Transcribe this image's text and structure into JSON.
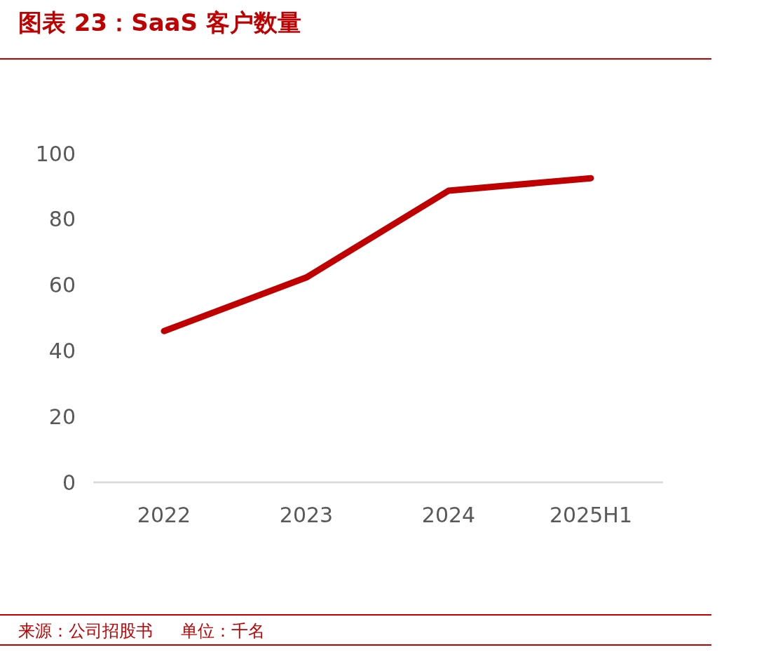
{
  "chart_data": {
    "type": "line",
    "title": "图表 23：SaaS 客户数量",
    "categories": [
      "2022",
      "2023",
      "2024",
      "2025H1"
    ],
    "series": [
      {
        "color": "#c00000",
        "values": [
          46,
          62.3,
          88.7,
          92.5
        ]
      }
    ],
    "ylim": [
      0,
      100
    ],
    "yticks": [
      0,
      20,
      40,
      60,
      80,
      100
    ],
    "grid": false,
    "marker": "none",
    "line_style": "solid",
    "annotations": [
      "来源：公司招股书",
      "单位：千名"
    ]
  }
}
